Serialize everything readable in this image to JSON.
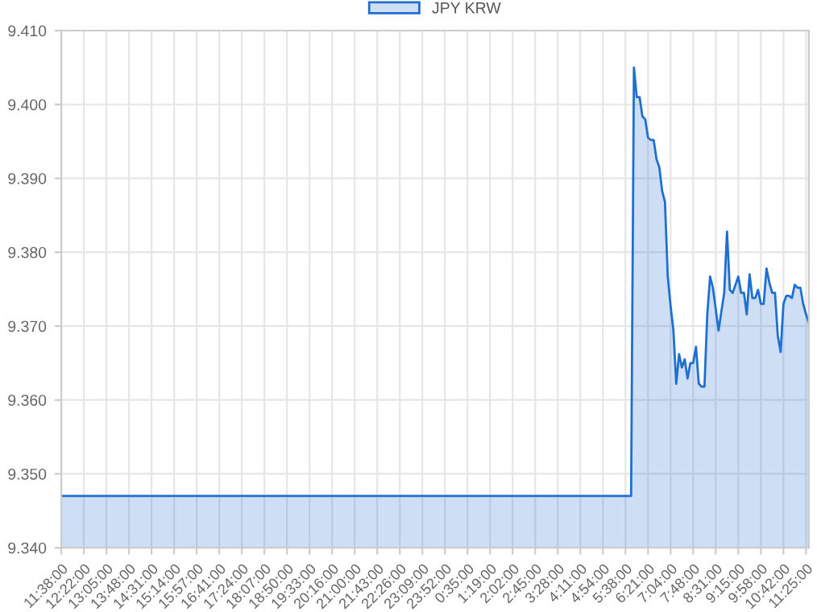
{
  "chart_data": {
    "type": "area",
    "legend": "top",
    "grid": true,
    "marker": "none",
    "line_style": "solid",
    "categories": [
      "11:38:00",
      null,
      null,
      null,
      null,
      null,
      null,
      null,
      "12:22:00",
      null,
      null,
      null,
      null,
      null,
      null,
      null,
      "13:05:00",
      null,
      null,
      null,
      null,
      null,
      null,
      null,
      "13:48:00",
      null,
      null,
      null,
      null,
      null,
      null,
      null,
      "14:31:00",
      null,
      null,
      null,
      null,
      null,
      null,
      null,
      "15:14:00",
      null,
      null,
      null,
      null,
      null,
      null,
      null,
      "15:57:00",
      null,
      null,
      null,
      null,
      null,
      null,
      null,
      "16:41:00",
      null,
      null,
      null,
      null,
      null,
      null,
      null,
      "17:24:00",
      null,
      null,
      null,
      null,
      null,
      null,
      null,
      "18:07:00",
      null,
      null,
      null,
      null,
      null,
      null,
      null,
      "18:50:00",
      null,
      null,
      null,
      null,
      null,
      null,
      null,
      "19:33:00",
      null,
      null,
      null,
      null,
      null,
      null,
      null,
      "20:16:00",
      null,
      null,
      null,
      null,
      null,
      null,
      null,
      "21:00:00",
      null,
      null,
      null,
      null,
      null,
      null,
      null,
      "21:43:00",
      null,
      null,
      null,
      null,
      null,
      null,
      null,
      "22:26:00",
      null,
      null,
      null,
      null,
      null,
      null,
      null,
      "23:09:00",
      null,
      null,
      null,
      null,
      null,
      null,
      null,
      "23:52:00",
      null,
      null,
      null,
      null,
      null,
      null,
      null,
      "0:35:00",
      null,
      null,
      null,
      null,
      null,
      null,
      null,
      "1:19:00",
      null,
      null,
      null,
      null,
      null,
      null,
      null,
      "2:02:00",
      null,
      null,
      null,
      null,
      null,
      null,
      null,
      "2:45:00",
      null,
      null,
      null,
      null,
      null,
      null,
      null,
      "3:28:00",
      null,
      null,
      null,
      null,
      null,
      null,
      null,
      "4:11:00",
      null,
      null,
      null,
      null,
      null,
      null,
      null,
      "4:54:00",
      null,
      null,
      null,
      null,
      null,
      null,
      null,
      "5:38:00",
      null,
      null,
      null,
      null,
      null,
      null,
      null,
      "6:21:00",
      null,
      null,
      null,
      null,
      null,
      null,
      null,
      "7:04:00",
      null,
      null,
      null,
      null,
      null,
      null,
      null,
      "7:48:00",
      null,
      null,
      null,
      null,
      null,
      null,
      null,
      "8:31:00",
      null,
      null,
      null,
      null,
      null,
      null,
      null,
      "9:15:00",
      null,
      null,
      null,
      null,
      null,
      null,
      null,
      "9:58:00",
      null,
      null,
      null,
      null,
      null,
      null,
      null,
      "10:42:00",
      null,
      null,
      null,
      null,
      null,
      null,
      null,
      "11:25:00",
      null
    ],
    "series": [
      {
        "name": "JPY KRW",
        "color": "#1f6fd0",
        "values": [
          9.347,
          9.347,
          9.347,
          9.347,
          9.347,
          9.347,
          9.347,
          9.347,
          9.347,
          9.347,
          9.347,
          9.347,
          9.347,
          9.347,
          9.347,
          9.347,
          9.347,
          9.347,
          9.347,
          9.347,
          9.347,
          9.347,
          9.347,
          9.347,
          9.347,
          9.347,
          9.347,
          9.347,
          9.347,
          9.347,
          9.347,
          9.347,
          9.347,
          9.347,
          9.347,
          9.347,
          9.347,
          9.347,
          9.347,
          9.347,
          9.347,
          9.347,
          9.347,
          9.347,
          9.347,
          9.347,
          9.347,
          9.347,
          9.347,
          9.347,
          9.347,
          9.347,
          9.347,
          9.347,
          9.347,
          9.347,
          9.347,
          9.347,
          9.347,
          9.347,
          9.347,
          9.347,
          9.347,
          9.347,
          9.347,
          9.347,
          9.347,
          9.347,
          9.347,
          9.347,
          9.347,
          9.347,
          9.347,
          9.347,
          9.347,
          9.347,
          9.347,
          9.347,
          9.347,
          9.347,
          9.347,
          9.347,
          9.347,
          9.347,
          9.347,
          9.347,
          9.347,
          9.347,
          9.347,
          9.347,
          9.347,
          9.347,
          9.347,
          9.347,
          9.347,
          9.347,
          9.347,
          9.347,
          9.347,
          9.347,
          9.347,
          9.347,
          9.347,
          9.347,
          9.347,
          9.347,
          9.347,
          9.347,
          9.347,
          9.347,
          9.347,
          9.347,
          9.347,
          9.347,
          9.347,
          9.347,
          9.347,
          9.347,
          9.347,
          9.347,
          9.347,
          9.347,
          9.347,
          9.347,
          9.347,
          9.347,
          9.347,
          9.347,
          9.347,
          9.347,
          9.347,
          9.347,
          9.347,
          9.347,
          9.347,
          9.347,
          9.347,
          9.347,
          9.347,
          9.347,
          9.347,
          9.347,
          9.347,
          9.347,
          9.347,
          9.347,
          9.347,
          9.347,
          9.347,
          9.347,
          9.347,
          9.347,
          9.347,
          9.347,
          9.347,
          9.347,
          9.347,
          9.347,
          9.347,
          9.347,
          9.347,
          9.347,
          9.347,
          9.347,
          9.347,
          9.347,
          9.347,
          9.347,
          9.347,
          9.347,
          9.347,
          9.347,
          9.347,
          9.347,
          9.347,
          9.347,
          9.347,
          9.347,
          9.347,
          9.347,
          9.347,
          9.347,
          9.347,
          9.347,
          9.347,
          9.347,
          9.347,
          9.347,
          9.347,
          9.347,
          9.347,
          9.347,
          9.347,
          9.347,
          9.347,
          9.347,
          9.347,
          9.347,
          9.347,
          9.347,
          9.347,
          9.347,
          9.347,
          9.405,
          9.401,
          9.401,
          9.3984,
          9.398,
          9.3955,
          9.3952,
          9.3952,
          9.3926,
          9.3915,
          9.3883,
          9.3868,
          9.3767,
          9.3727,
          9.3694,
          9.3622,
          9.3662,
          9.3644,
          9.3655,
          9.3629,
          9.365,
          9.365,
          9.3672,
          9.3622,
          9.3618,
          9.3618,
          9.3716,
          9.3767,
          9.3752,
          9.3723,
          9.3694,
          9.372,
          9.3745,
          9.3828,
          9.3749,
          9.3745,
          9.3756,
          9.3767,
          9.3745,
          9.3745,
          9.3716,
          9.377,
          9.3738,
          9.3738,
          9.3749,
          9.373,
          9.373,
          9.3778,
          9.3759,
          9.3745,
          9.3745,
          9.3687,
          9.3665,
          9.373,
          9.3741,
          9.3741,
          9.3738,
          9.3756,
          9.3752,
          9.3752,
          9.373,
          9.3716,
          9.3705
        ]
      }
    ],
    "ylim": [
      9.34,
      9.41
    ],
    "yticks": [
      {
        "value": 9.34,
        "label": "9.340"
      },
      {
        "value": 9.35,
        "label": "9.350"
      },
      {
        "value": 9.36,
        "label": "9.360"
      },
      {
        "value": 9.37,
        "label": "9.370"
      },
      {
        "value": 9.38,
        "label": "9.380"
      },
      {
        "value": 9.39,
        "label": "9.390"
      },
      {
        "value": 9.4,
        "label": "9.400"
      },
      {
        "value": 9.41,
        "label": "9.410"
      }
    ]
  }
}
